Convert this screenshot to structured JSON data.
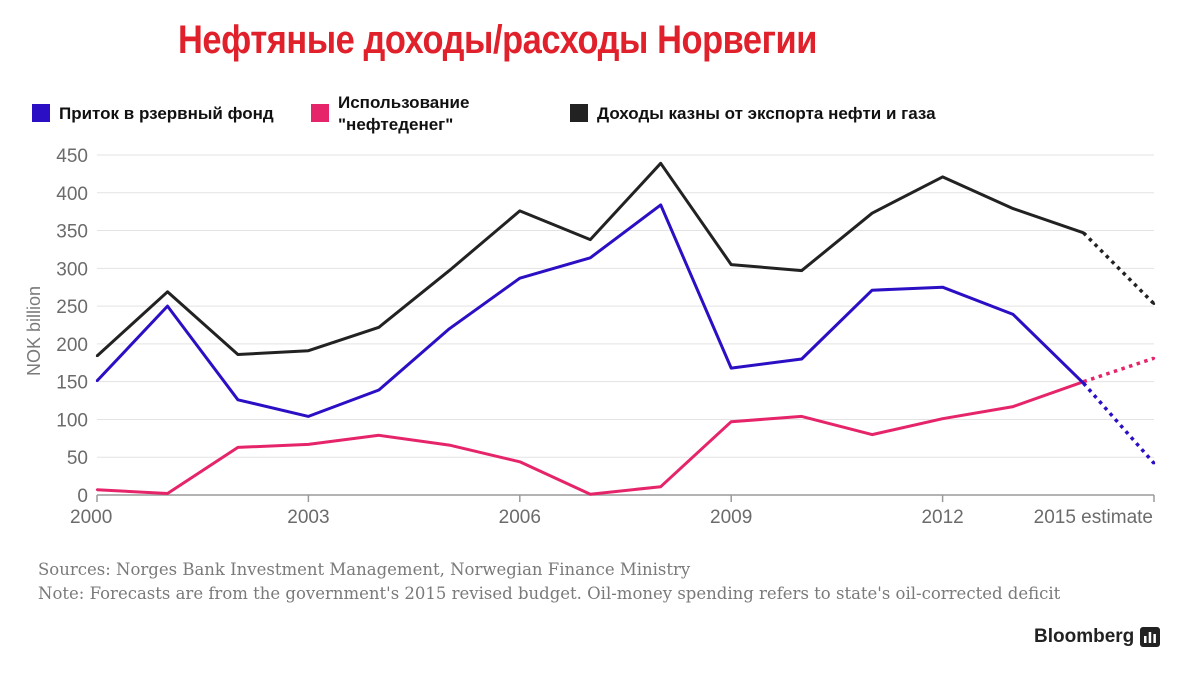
{
  "title": "Нефтяные доходы/расходы Норвегии",
  "legend": [
    {
      "label": "Приток в рзервный фонд",
      "color": "#2a0fc4"
    },
    {
      "label": "Использование \"нефтеденег\"",
      "color": "#e6246a"
    },
    {
      "label": "Доходы казны от экспорта нефти и газа",
      "color": "#222222"
    }
  ],
  "chart_data": {
    "type": "line",
    "ylabel": "NOK billion",
    "ylim": [
      0,
      450
    ],
    "yticks": [
      0,
      50,
      100,
      150,
      200,
      250,
      300,
      350,
      400,
      450
    ],
    "x": [
      2000,
      2001,
      2002,
      2003,
      2004,
      2005,
      2006,
      2007,
      2008,
      2009,
      2010,
      2011,
      2012,
      2013,
      2014,
      2015
    ],
    "xlim": [
      2000,
      2015
    ],
    "xticks": [
      {
        "value": 2000,
        "label": "2000"
      },
      {
        "value": 2003,
        "label": "2003"
      },
      {
        "value": 2006,
        "label": "2006"
      },
      {
        "value": 2009,
        "label": "2009"
      },
      {
        "value": 2012,
        "label": "2012"
      },
      {
        "value": 2015,
        "label": "2015 estimate"
      }
    ],
    "estimate_from": 2014,
    "grid": true,
    "series": [
      {
        "name": "Приток в рзервный фонд",
        "color": "#2a0fc4",
        "values": [
          151,
          250,
          126,
          104,
          139,
          220,
          287,
          314,
          384,
          168,
          180,
          271,
          275,
          239,
          148,
          42
        ]
      },
      {
        "name": "Использование \"нефтеденег\"",
        "color": "#e6246a",
        "values": [
          7,
          2,
          63,
          67,
          79,
          66,
          44,
          1,
          11,
          97,
          104,
          80,
          101,
          117,
          150,
          181
        ]
      },
      {
        "name": "Доходы казны от экспорта нефти и газа",
        "color": "#222222",
        "values": [
          184,
          269,
          186,
          191,
          222,
          297,
          376,
          338,
          439,
          305,
          297,
          373,
          421,
          379,
          347,
          253
        ]
      }
    ]
  },
  "footer": {
    "sources": "Sources: Norges Bank Investment Management, Norwegian Finance Ministry",
    "note": "Note: Forecasts are from the government's 2015 revised budget. Oil-money spending refers to state's oil-corrected deficit"
  },
  "brand": {
    "name": "Bloomberg",
    "icon": "bar-chart-icon"
  }
}
